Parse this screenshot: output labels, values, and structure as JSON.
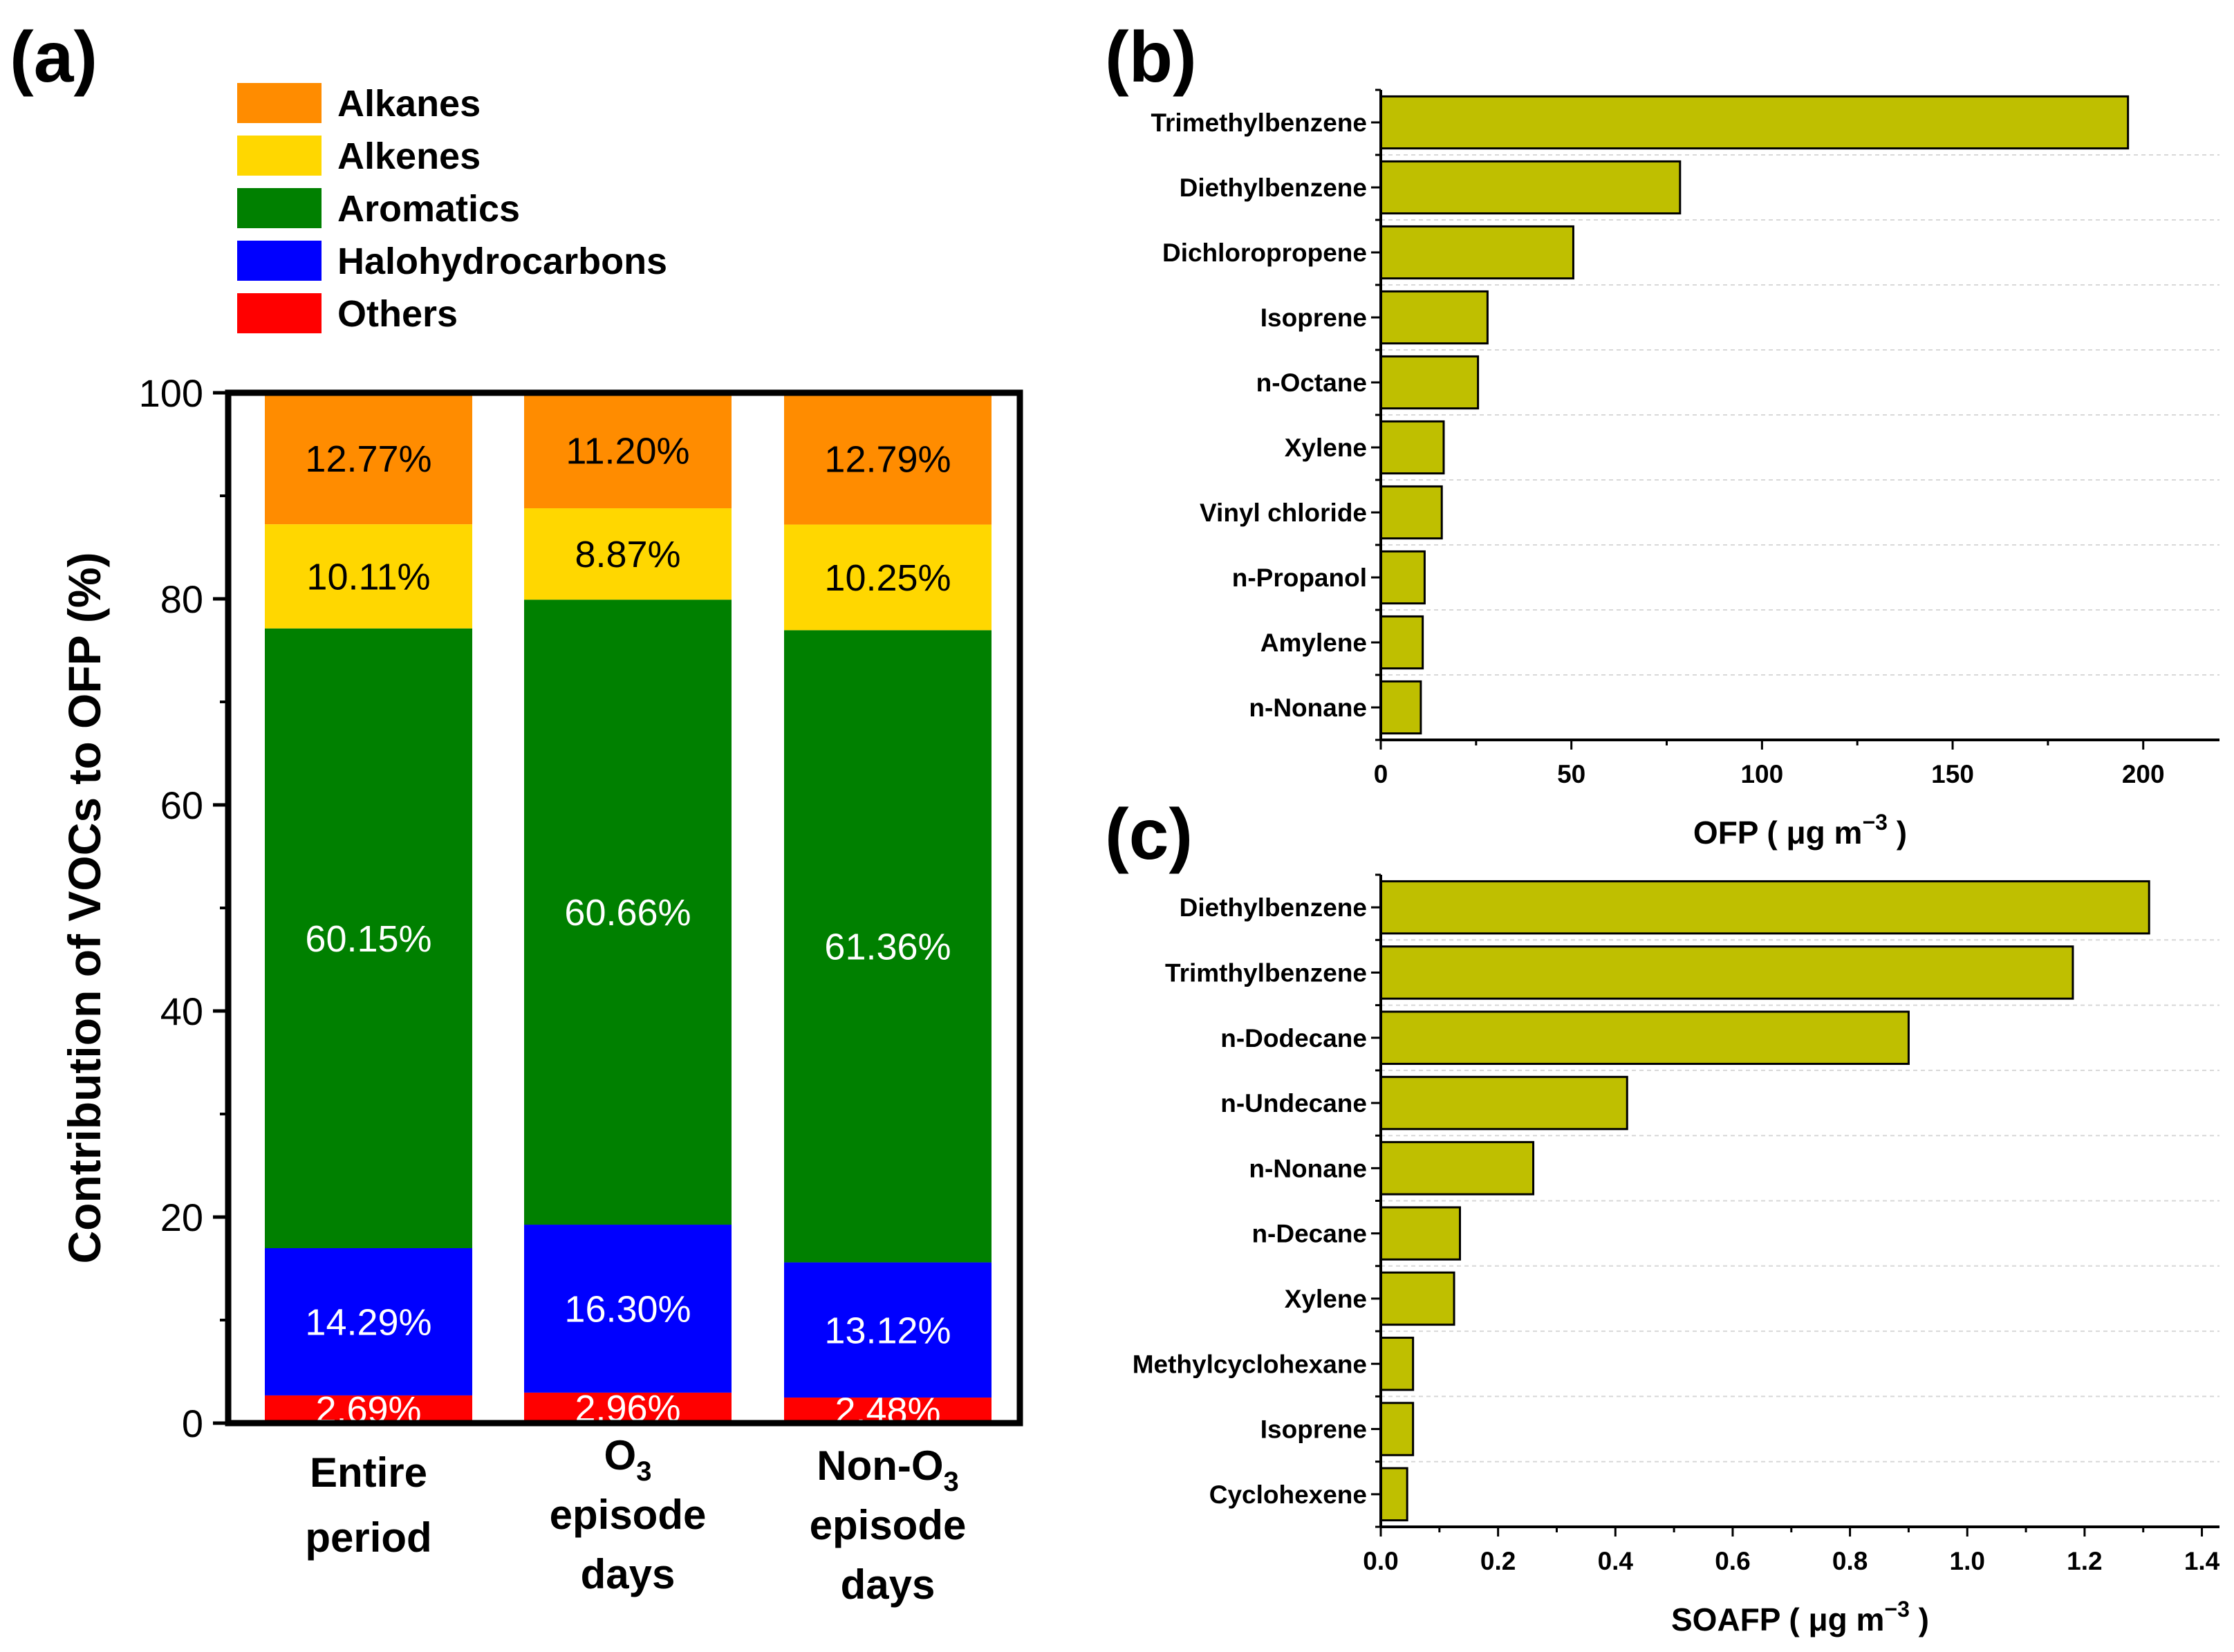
{
  "panels": {
    "a": "(a)",
    "b": "(b)",
    "c": "(c)"
  },
  "chart_data": [
    {
      "type": "bar",
      "stacked": true,
      "id": "a",
      "ylabel": "Contribution of VOCs to OFP (%)",
      "ylim": [
        0,
        100
      ],
      "yticks": [
        0,
        20,
        40,
        60,
        80,
        100
      ],
      "categories": [
        {
          "lines": [
            "Entire",
            "period"
          ]
        },
        {
          "lines": [
            "O",
            "episode",
            "days"
          ],
          "sub": "3"
        },
        {
          "lines": [
            "Non-O",
            "episode",
            "days"
          ],
          "sub": "3"
        }
      ],
      "series": [
        {
          "name": "Others",
          "color": "#ff0000",
          "values": [
            2.69,
            2.96,
            2.48
          ],
          "labels": [
            "2.69%",
            "2.96%",
            "2.48%"
          ],
          "text_color": "#ffffff"
        },
        {
          "name": "Halohydrocarbons",
          "color": "#0000ff",
          "values": [
            14.29,
            16.3,
            13.12
          ],
          "labels": [
            "14.29%",
            "16.30%",
            "13.12%"
          ],
          "text_color": "#ffffff"
        },
        {
          "name": "Aromatics",
          "color": "#008000",
          "values": [
            60.15,
            60.66,
            61.36
          ],
          "labels": [
            "60.15%",
            "60.66%",
            "61.36%"
          ],
          "text_color": "#ffffff"
        },
        {
          "name": "Alkenes",
          "color": "#ffd700",
          "values": [
            10.11,
            8.87,
            10.25
          ],
          "labels": [
            "10.11%",
            "8.87%",
            "10.25%"
          ],
          "text_color": "#000000"
        },
        {
          "name": "Alkanes",
          "color": "#ff8c00",
          "values": [
            12.77,
            11.2,
            12.79
          ],
          "labels": [
            "12.77%",
            "11.20%",
            "12.79%"
          ],
          "text_color": "#000000"
        }
      ],
      "legend": [
        "Alkanes",
        "Alkenes",
        "Aromatics",
        "Halohydrocarbons",
        "Others"
      ],
      "legend_position": "top-left"
    },
    {
      "type": "bar",
      "orientation": "horizontal",
      "id": "b",
      "bar_color": "#bfbf00",
      "categories": [
        "Trimethylbenzene",
        "Diethylbenzene",
        "Dichloropropene",
        "Isoprene",
        "n-Octane",
        "Xylene",
        "Vinyl chloride",
        "n-Propanol",
        "Amylene",
        "n-Nonane"
      ],
      "values": [
        196,
        78.5,
        50.5,
        28,
        25.5,
        16.5,
        16,
        11.5,
        11,
        10.5
      ],
      "xlim": [
        0,
        220
      ],
      "xticks": [
        "0",
        "50",
        "100",
        "150",
        "200"
      ],
      "xtick_values": [
        0,
        50,
        100,
        150,
        200
      ],
      "xlabel": "OFP ( μg m",
      "xlabel_sup": "−3",
      "xlabel_end": ")"
    },
    {
      "type": "bar",
      "orientation": "horizontal",
      "id": "c",
      "bar_color": "#bfbf00",
      "categories": [
        "Diethylbenzene",
        "Trimthylbenzene",
        "n-Dodecane",
        "n-Undecane",
        "n-Nonane",
        "n-Decane",
        "Xylene",
        "Methylcyclohexane",
        "Isoprene",
        "Cyclohexene"
      ],
      "values": [
        1.31,
        1.18,
        0.9,
        0.42,
        0.26,
        0.135,
        0.125,
        0.055,
        0.055,
        0.045
      ],
      "xlim": [
        0,
        1.43
      ],
      "xticks": [
        "0.0",
        "0.2",
        "0.4",
        "0.6",
        "0.8",
        "1.0",
        "1.2",
        "1.4"
      ],
      "xtick_values": [
        0,
        0.2,
        0.4,
        0.6,
        0.8,
        1.0,
        1.2,
        1.4
      ],
      "xlabel": "SOAFP ( μg m",
      "xlabel_sup": "−3",
      "xlabel_end": ")"
    }
  ]
}
